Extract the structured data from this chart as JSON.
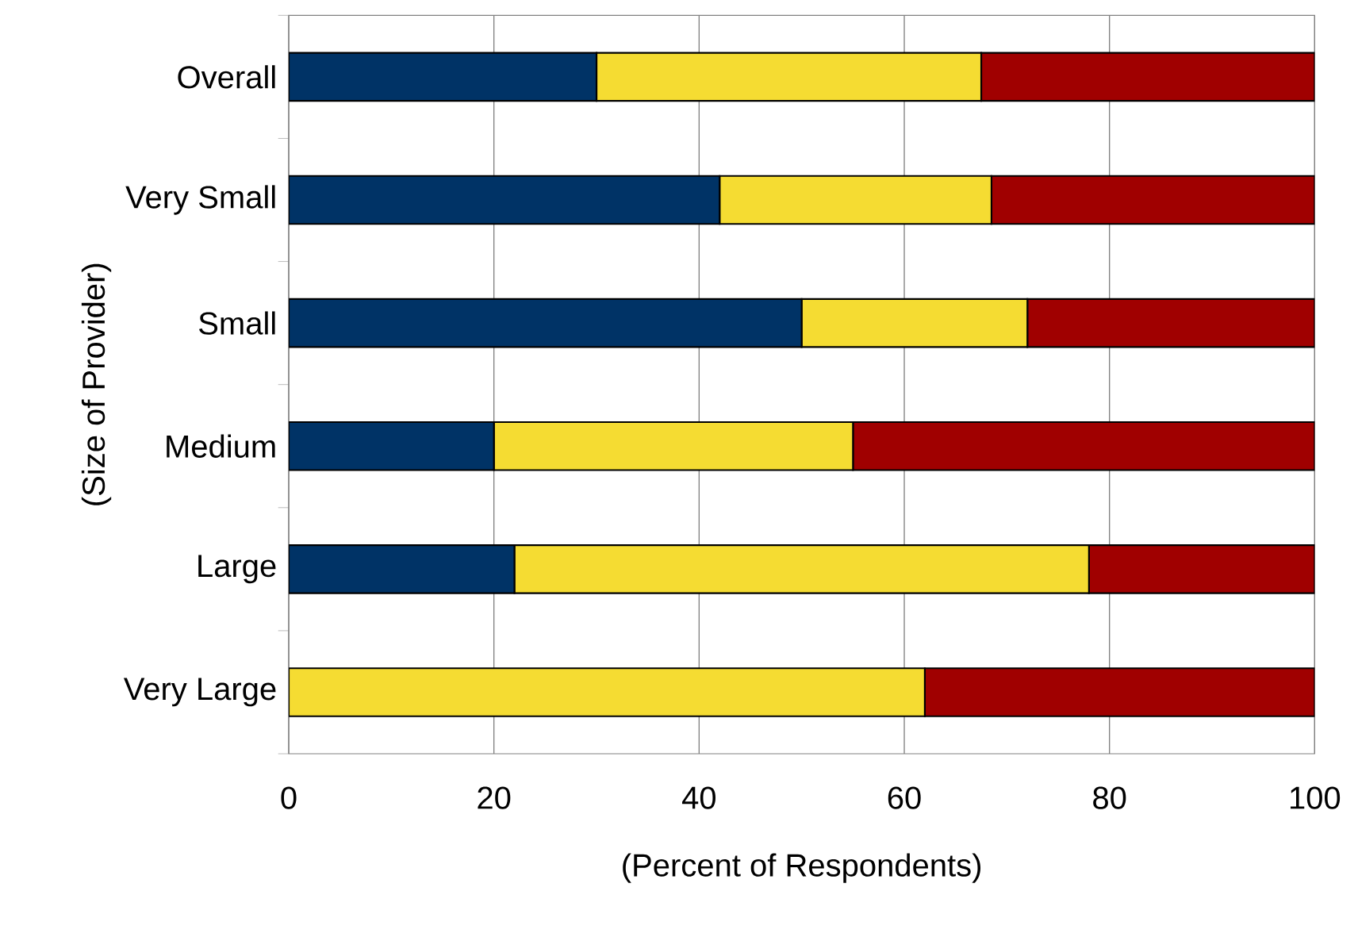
{
  "chart_data": {
    "type": "bar",
    "orientation": "horizontal",
    "stacked": true,
    "xlabel": "(Percent of Respondents)",
    "ylabel": "(Size of Provider)",
    "categories": [
      "Overall",
      "Very Small",
      "Small",
      "Medium",
      "Large",
      "Very Large"
    ],
    "series": [
      {
        "color": "#003366",
        "values": [
          30,
          42,
          50,
          20,
          22,
          0
        ]
      },
      {
        "color": "#f5dc32",
        "values": [
          37.5,
          26.5,
          22,
          35,
          56,
          62
        ]
      },
      {
        "color": "#a00000",
        "values": [
          32.5,
          31.5,
          28,
          45,
          22,
          38
        ]
      }
    ],
    "xlim": [
      0,
      100
    ],
    "xticks": [
      0,
      20,
      40,
      60,
      80,
      100
    ],
    "grid": "x"
  }
}
